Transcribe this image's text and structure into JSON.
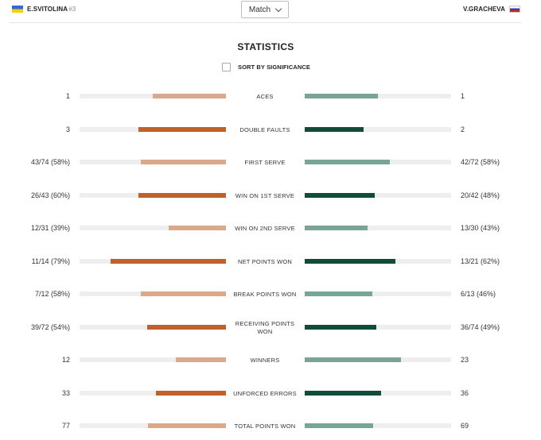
{
  "header": {
    "player1": {
      "name": "E.SVITOLINA",
      "seed": "#3",
      "flag_icon": "ukraine-flag-icon"
    },
    "player2": {
      "name": "V.GRACHEVA",
      "flag_icon": "russia-flag-icon"
    },
    "match_select": {
      "value": "Match"
    }
  },
  "title": "STATISTICS",
  "sort_label": "SORT BY SIGNIFICANCE",
  "colors": {
    "p1_strong": "#c0612b",
    "p1_light": "#daa88a",
    "p2_strong": "#0f4d3a",
    "p2_light": "#7aa596",
    "track": "#eeeeee"
  },
  "stats": [
    {
      "label": "ACES",
      "left": "1",
      "right": "1",
      "left_fraction": 0.5,
      "right_fraction": 0.5,
      "winner": "none"
    },
    {
      "label": "DOUBLE FAULTS",
      "left": "3",
      "right": "2",
      "left_fraction": 0.6,
      "right_fraction": 0.4,
      "winner": "both"
    },
    {
      "label": "FIRST SERVE",
      "left": "43/74 (58%)",
      "right": "42/72 (58%)",
      "left_fraction": 0.58,
      "right_fraction": 0.58,
      "winner": "none"
    },
    {
      "label": "WIN ON 1ST SERVE",
      "left": "26/43 (60%)",
      "right": "20/42 (48%)",
      "left_fraction": 0.6,
      "right_fraction": 0.48,
      "winner": "both"
    },
    {
      "label": "WIN ON 2ND SERVE",
      "left": "12/31 (39%)",
      "right": "13/30 (43%)",
      "left_fraction": 0.39,
      "right_fraction": 0.43,
      "winner": "none"
    },
    {
      "label": "NET POINTS WON",
      "left": "11/14 (79%)",
      "right": "13/21 (62%)",
      "left_fraction": 0.79,
      "right_fraction": 0.62,
      "winner": "both"
    },
    {
      "label": "BREAK POINTS WON",
      "left": "7/12 (58%)",
      "right": "6/13 (46%)",
      "left_fraction": 0.58,
      "right_fraction": 0.46,
      "winner": "none"
    },
    {
      "label": "RECEIVING POINTS WON",
      "left": "39/72 (54%)",
      "right": "36/74 (49%)",
      "left_fraction": 0.54,
      "right_fraction": 0.49,
      "winner": "both"
    },
    {
      "label": "WINNERS",
      "left": "12",
      "right": "23",
      "left_fraction": 0.34,
      "right_fraction": 0.66,
      "winner": "none"
    },
    {
      "label": "UNFORCED ERRORS",
      "left": "33",
      "right": "36",
      "left_fraction": 0.48,
      "right_fraction": 0.52,
      "winner": "both"
    },
    {
      "label": "TOTAL POINTS WON",
      "left": "77",
      "right": "69",
      "left_fraction": 0.53,
      "right_fraction": 0.47,
      "winner": "none"
    }
  ]
}
